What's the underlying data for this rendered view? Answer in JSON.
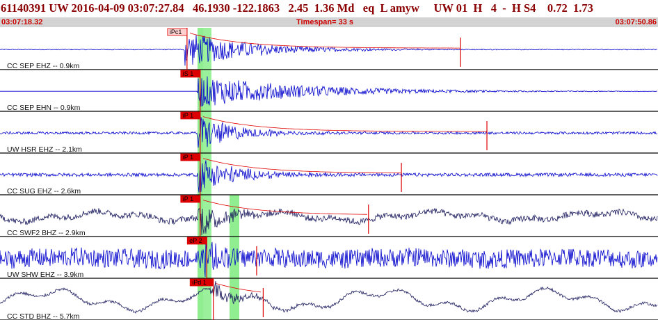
{
  "header": {
    "title": "61140391 UW 2016-04-09 03:07:27.84   46.1930 -122.1863   2.45  1.36 Md   eq  L amyw     UW 01  H   4  -  H S4    0.72  1.73",
    "start_time": "03:07:18.32",
    "timespan": "Timespan=  33 s",
    "end_time": "03:07:50.86"
  },
  "colors": {
    "waveform_blue": "#0000cc",
    "waveform_navy": "#1a1a5e",
    "pick_red": "#dd0000",
    "window_green": "#90ee90",
    "coda_red": "#e00000",
    "bar_gray": "#d3d3d3"
  },
  "traces": [
    {
      "label": "CC SEP EHZ -- 0.9km",
      "pick": "iPc1",
      "color": "blue",
      "amp": 0.35,
      "burst": 0.9,
      "decay": 0.1,
      "noise": 0.02,
      "low": 0.0,
      "pick_time": 0.28,
      "mark_time": 0.7,
      "coda": true
    },
    {
      "label": "CC SEP EHN -- 0.9km",
      "pick": "iS 1",
      "color": "blue",
      "amp": 0.35,
      "burst": 0.8,
      "decay": 0.16,
      "noise": 0.0,
      "low": 0.0,
      "pick_time": 0.3,
      "mark_time": null,
      "coda": false
    },
    {
      "label": "UW HSR EHZ -- 2.1km",
      "pick": "iP 1",
      "color": "blue",
      "amp": 0.35,
      "burst": 0.9,
      "decay": 0.06,
      "noise": 0.06,
      "low": 0.0,
      "pick_time": 0.3,
      "mark_time": 0.74,
      "coda": true
    },
    {
      "label": "CC SUG EHZ -- 2.6km",
      "pick": "iP 1",
      "color": "blue",
      "amp": 0.35,
      "burst": 0.9,
      "decay": 0.06,
      "noise": 0.08,
      "low": 0.0,
      "pick_time": 0.3,
      "mark_time": 0.61,
      "coda": true
    },
    {
      "label": "CC SWF2 BHZ -- 2.9km",
      "pick": "iP 1",
      "color": "navy",
      "amp": 0.35,
      "burst": 0.9,
      "decay": 0.04,
      "noise": 0.15,
      "low": 0.35,
      "pick_time": 0.3,
      "mark_time": 0.56,
      "coda": true
    },
    {
      "label": "UW SHW EHZ -- 3.9km",
      "pick": "eP 2",
      "color": "blue",
      "amp": 0.35,
      "burst": 0.9,
      "decay": 0.02,
      "noise": 0.45,
      "low": 0.1,
      "pick_time": 0.31,
      "mark_time": 0.39,
      "coda": false
    },
    {
      "label": "CC STD BHZ -- 5.7km",
      "pick": "iPd 1",
      "color": "navy",
      "amp": 0.35,
      "burst": 0.5,
      "decay": 0.05,
      "noise": 0.07,
      "low": 0.75,
      "pick_time": 0.32,
      "mark_time": 0.4,
      "coda": true
    }
  ]
}
